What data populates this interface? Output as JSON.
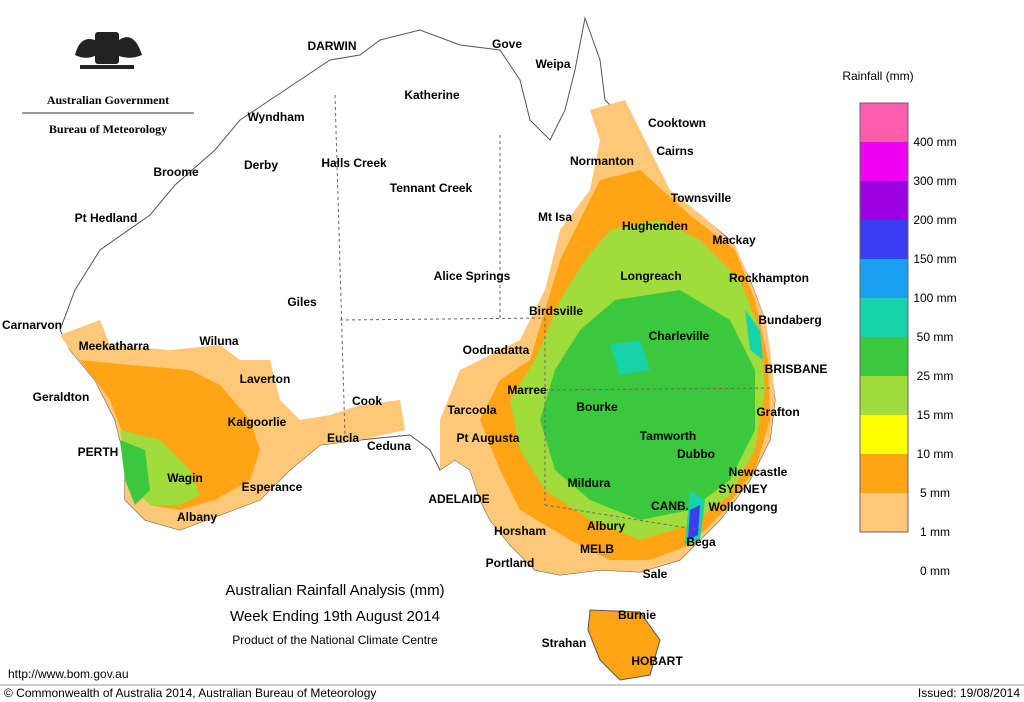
{
  "header": {
    "title": "Australian Government",
    "subtitle": "Bureau of Meteorology"
  },
  "map": {
    "title": "Australian Rainfall Analysis (mm)",
    "period": "Week Ending 19th August 2014",
    "credit": "Product of the National Climate Centre",
    "places": [
      "DARWIN",
      "Gove",
      "Weipa",
      "Katherine",
      "Wyndham",
      "Cooktown",
      "Cairns",
      "Normanton",
      "Broome",
      "Derby",
      "Halls Creek",
      "Tennant Creek",
      "Townsville",
      "Pt Hedland",
      "Mt Isa",
      "Hughenden",
      "Mackay",
      "Longreach",
      "Alice Springs",
      "Rockhampton",
      "Giles",
      "Birdsville",
      "Bundaberg",
      "Carnarvon",
      "Meekatharra",
      "Wiluna",
      "Charleville",
      "Oodnadatta",
      "BRISBANE",
      "Laverton",
      "Marree",
      "Geraldton",
      "Cook",
      "Bourke",
      "Grafton",
      "Tarcoola",
      "Kalgoorlie",
      "Eucla",
      "Pt Augusta",
      "Tamworth",
      "Ceduna",
      "PERTH",
      "Dubbo",
      "Newcastle",
      "Wagin",
      "Mildura",
      "Esperance",
      "SYDNEY",
      "ADELAIDE",
      "CANB.",
      "Wollongong",
      "Albany",
      "Albury",
      "Horsham",
      "Bega",
      "MELB",
      "Portland",
      "Sale",
      "Burnie",
      "Strahan",
      "HOBART"
    ]
  },
  "legend": {
    "title": "Rainfall (mm)",
    "colors": [
      "#ff5cb0",
      "#f000f0",
      "#9a00e0",
      "#3c3cf0",
      "#1aa0f0",
      "#18d2a8",
      "#3cc83c",
      "#a0dc3c",
      "#ffff00",
      "#ffa414",
      "#ffc878",
      "#ffffff"
    ],
    "labels": [
      "400 mm",
      "300 mm",
      "200 mm",
      "150 mm",
      "100 mm",
      "50 mm",
      "25 mm",
      "15 mm",
      "10 mm",
      "5 mm",
      "1 mm",
      "0 mm"
    ]
  },
  "footer": {
    "url": "http://www.bom.gov.au",
    "copyright": "© Commonwealth of Australia 2014, Australian Bureau of Meteorology",
    "issued": "Issued: 19/08/2014"
  }
}
